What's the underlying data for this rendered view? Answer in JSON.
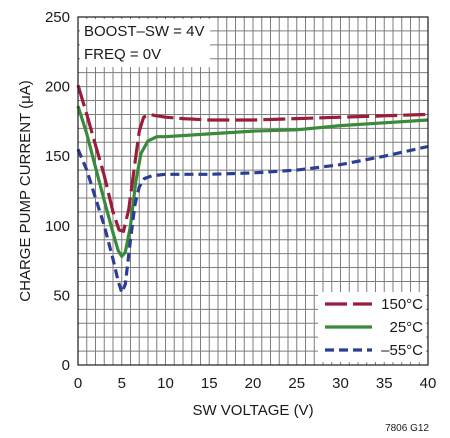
{
  "chart_data": {
    "type": "line",
    "xlabel": "SW VOLTAGE (V)",
    "ylabel": "CHARGE PUMP CURRENT (μA)",
    "xlim": [
      0,
      40
    ],
    "ylim": [
      0,
      250
    ],
    "x_ticks": [
      0,
      5,
      10,
      15,
      20,
      25,
      30,
      35,
      40
    ],
    "y_ticks": [
      0,
      50,
      100,
      150,
      200,
      250
    ],
    "grid": true,
    "legend_position": "bottom-right",
    "annotations": [
      "BOOST–SW = 4V",
      "FREQ = 0V"
    ],
    "code": "7806 G12",
    "series": [
      {
        "name": "150°C",
        "color": "#9b1d3a",
        "dash": "long-dash",
        "points": [
          [
            0,
            201
          ],
          [
            1,
            180
          ],
          [
            2,
            158
          ],
          [
            3,
            136
          ],
          [
            4,
            110
          ],
          [
            4.7,
            97
          ],
          [
            5.2,
            96
          ],
          [
            5.8,
            112
          ],
          [
            6.5,
            145
          ],
          [
            7,
            168
          ],
          [
            7.5,
            178
          ],
          [
            8.2,
            180
          ],
          [
            9,
            179
          ],
          [
            10,
            178
          ],
          [
            12,
            177
          ],
          [
            15,
            176
          ],
          [
            20,
            176
          ],
          [
            25,
            177
          ],
          [
            30,
            178
          ],
          [
            35,
            179
          ],
          [
            40,
            180
          ]
        ]
      },
      {
        "name": "25°C",
        "color": "#3a8a3a",
        "dash": "solid",
        "points": [
          [
            0,
            186
          ],
          [
            1,
            166
          ],
          [
            2,
            142
          ],
          [
            3,
            118
          ],
          [
            4,
            95
          ],
          [
            4.6,
            82
          ],
          [
            5,
            78
          ],
          [
            5.4,
            81
          ],
          [
            6,
            100
          ],
          [
            6.6,
            132
          ],
          [
            7.2,
            152
          ],
          [
            8,
            161
          ],
          [
            9,
            164
          ],
          [
            10,
            164
          ],
          [
            15,
            166
          ],
          [
            20,
            168
          ],
          [
            25,
            169
          ],
          [
            30,
            172
          ],
          [
            35,
            174
          ],
          [
            40,
            176
          ]
        ]
      },
      {
        "name": "–55°C",
        "color": "#2b3e93",
        "dash": "short-dash",
        "points": [
          [
            0,
            155
          ],
          [
            1,
            140
          ],
          [
            2,
            120
          ],
          [
            3,
            100
          ],
          [
            4,
            76
          ],
          [
            4.6,
            60
          ],
          [
            5,
            52
          ],
          [
            5.4,
            58
          ],
          [
            6,
            90
          ],
          [
            6.5,
            115
          ],
          [
            7,
            128
          ],
          [
            7.6,
            134
          ],
          [
            8.5,
            136
          ],
          [
            10,
            137
          ],
          [
            15,
            137
          ],
          [
            20,
            138
          ],
          [
            25,
            140
          ],
          [
            30,
            144
          ],
          [
            35,
            150
          ],
          [
            40,
            157
          ]
        ]
      }
    ]
  }
}
